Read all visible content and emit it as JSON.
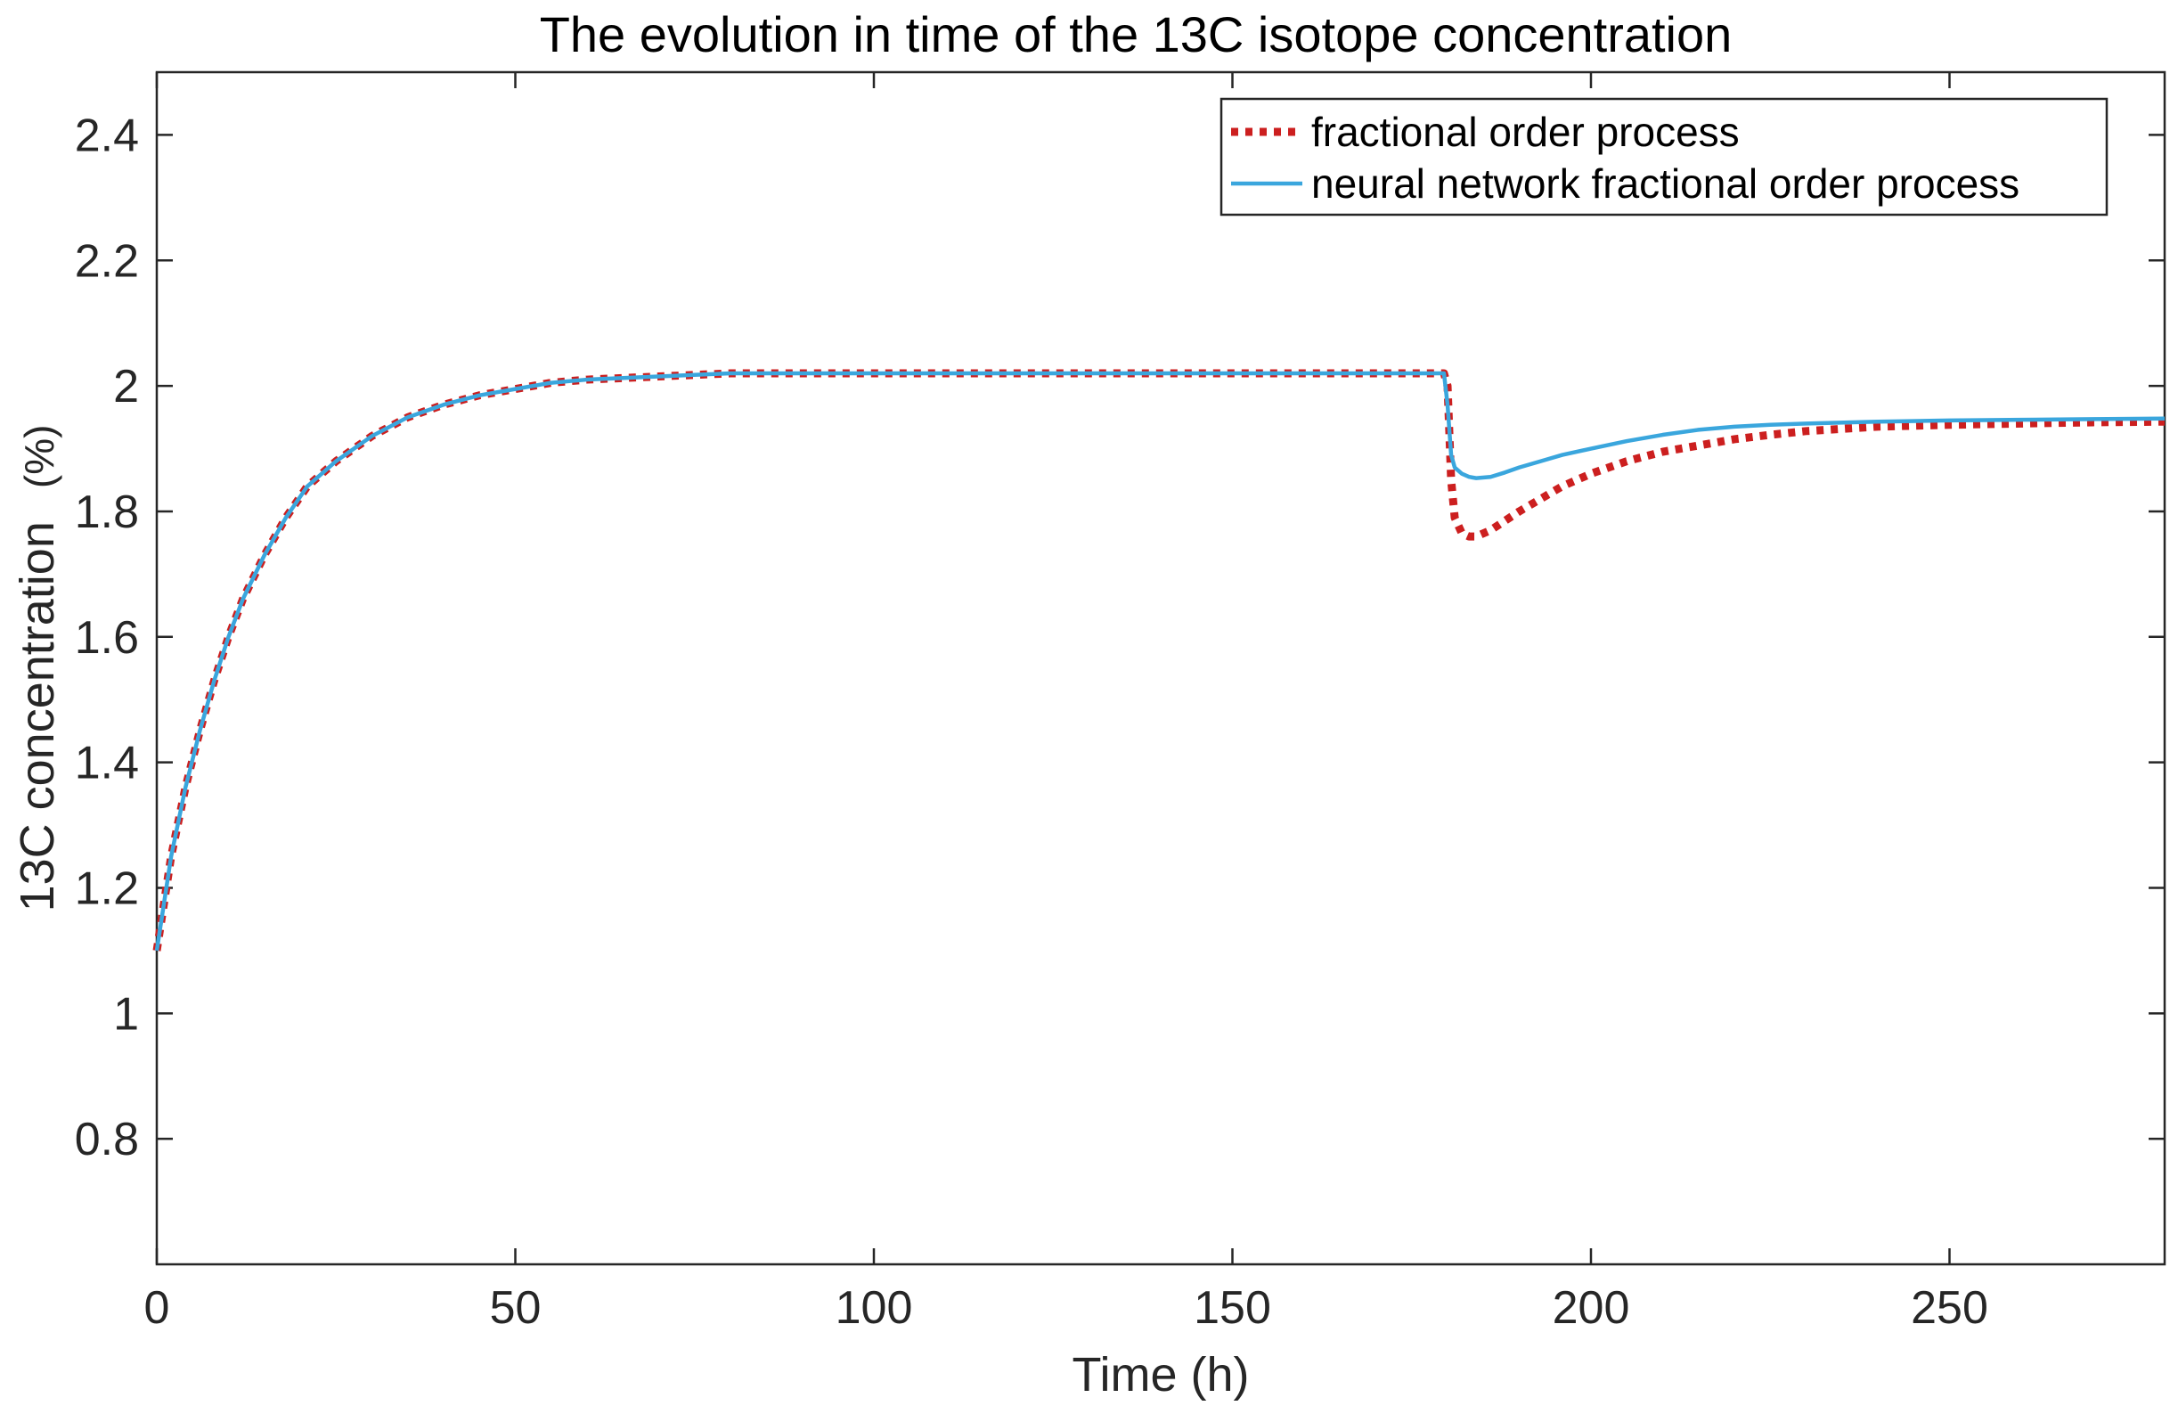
{
  "chart_data": {
    "type": "line",
    "title": "The evolution in time of the 13C isotope concentration",
    "xlabel": "Time (h)",
    "ylabel": "13C concentration",
    "ylabel_unit": "(%)",
    "xlim": [
      0,
      280
    ],
    "ylim": [
      0.6,
      2.5
    ],
    "xticks": [
      0,
      50,
      100,
      150,
      200,
      250
    ],
    "xtick_labels": [
      "0",
      "50",
      "100",
      "150",
      "200",
      "250"
    ],
    "yticks": [
      0.8,
      1.0,
      1.2,
      1.4,
      1.6,
      1.8,
      2.0,
      2.2,
      2.4
    ],
    "ytick_labels": [
      "0.8",
      "1",
      "1.2",
      "1.4",
      "1.6",
      "1.8",
      "2",
      "2.2",
      "2.4"
    ],
    "grid": false,
    "legend_position": "top-right",
    "series": [
      {
        "name": "fractional order process",
        "color": "#cc1f1f",
        "style": "dotted",
        "x": [
          0,
          2,
          4,
          6,
          8,
          10,
          12,
          15,
          18,
          21,
          25,
          30,
          35,
          40,
          45,
          50,
          55,
          60,
          70,
          80,
          100,
          120,
          150,
          179.5,
          180,
          180.5,
          181,
          182,
          183,
          184,
          186,
          188,
          190,
          193,
          196,
          200,
          205,
          210,
          215,
          220,
          225,
          230,
          240,
          250,
          260,
          270,
          280
        ],
        "y": [
          1.1,
          1.25,
          1.36,
          1.45,
          1.53,
          1.6,
          1.66,
          1.73,
          1.79,
          1.84,
          1.88,
          1.92,
          1.95,
          1.97,
          1.985,
          1.995,
          2.005,
          2.01,
          2.015,
          2.02,
          2.02,
          2.02,
          2.02,
          2.02,
          2.0,
          1.85,
          1.79,
          1.765,
          1.76,
          1.76,
          1.77,
          1.785,
          1.8,
          1.82,
          1.84,
          1.86,
          1.88,
          1.895,
          1.905,
          1.915,
          1.922,
          1.928,
          1.935,
          1.938,
          1.94,
          1.942,
          1.943
        ]
      },
      {
        "name": "neural network fractional order process",
        "color": "#3aa6dd",
        "style": "solid",
        "x": [
          0,
          2,
          4,
          6,
          8,
          10,
          12,
          15,
          18,
          21,
          25,
          30,
          35,
          40,
          45,
          50,
          55,
          60,
          70,
          80,
          100,
          120,
          150,
          179.5,
          180,
          180.5,
          181,
          182,
          183,
          184,
          186,
          188,
          190,
          193,
          196,
          200,
          205,
          210,
          215,
          220,
          225,
          230,
          240,
          250,
          260,
          270,
          280
        ],
        "y": [
          1.1,
          1.25,
          1.36,
          1.45,
          1.53,
          1.6,
          1.66,
          1.73,
          1.79,
          1.84,
          1.88,
          1.92,
          1.95,
          1.97,
          1.985,
          1.995,
          2.005,
          2.01,
          2.015,
          2.02,
          2.02,
          2.02,
          2.02,
          2.02,
          1.97,
          1.89,
          1.87,
          1.86,
          1.855,
          1.853,
          1.855,
          1.862,
          1.87,
          1.88,
          1.89,
          1.9,
          1.912,
          1.922,
          1.93,
          1.935,
          1.938,
          1.94,
          1.943,
          1.945,
          1.946,
          1.947,
          1.948
        ]
      }
    ]
  }
}
